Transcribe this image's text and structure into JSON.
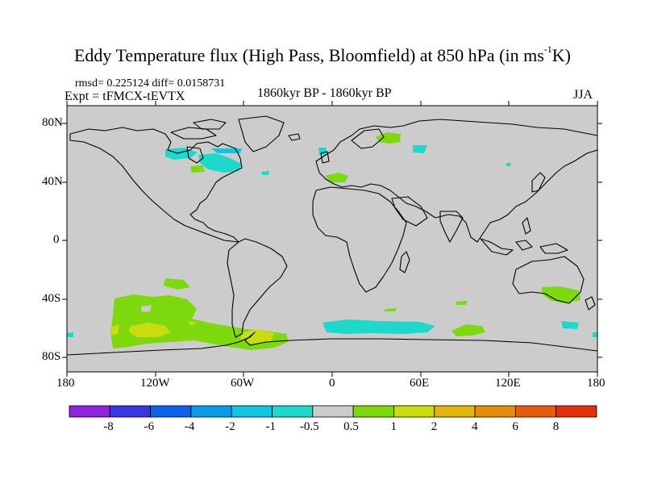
{
  "title": {
    "main": "Eddy Temperature flux (High Pass, Bloomfield) at 850 hPa (in ms",
    "sup": "-1",
    "end": "K)"
  },
  "stats": "rmsd= 0.225124 diff= 0.0158731",
  "experiment": "Expt = tFMCX-tEVTX",
  "period": "1860kyr BP - 1860kyr BP",
  "season": "JJA",
  "axes": {
    "lat_labels": [
      "80N",
      "40N",
      "0",
      "40S",
      "80S"
    ],
    "lon_labels": [
      "180",
      "120W",
      "60W",
      "0",
      "60E",
      "120E",
      "180"
    ]
  },
  "colorbar": {
    "labels": [
      "-8",
      "-6",
      "-4",
      "-2",
      "-1",
      "-0.5",
      "0.5",
      "1",
      "2",
      "4",
      "6",
      "8"
    ],
    "colors": [
      "#8e24dc",
      "#3a36e0",
      "#0c62e8",
      "#0c9ae8",
      "#12c4e0",
      "#1ed8cc",
      "#cccccc",
      "#7ed80e",
      "#c8dc10",
      "#e4b40e",
      "#e48c0e",
      "#e45c10",
      "#e0300c"
    ]
  },
  "colors": {
    "background": "#cccccc",
    "positive_1": "#7ed80e",
    "positive_2": "#c8dc10",
    "negative_1": "#1ed8cc",
    "negative_2": "#12c4e0"
  }
}
